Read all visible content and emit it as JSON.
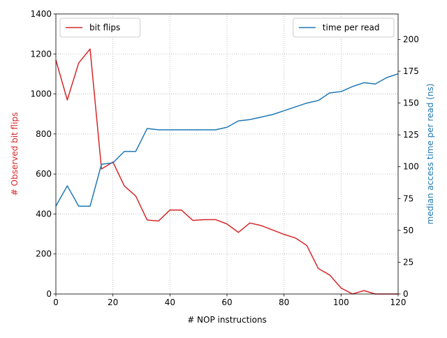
{
  "chart_data": {
    "type": "line",
    "xlabel": "# NOP instructions",
    "xlim": [
      0,
      120
    ],
    "x_ticks": [
      0,
      20,
      40,
      60,
      80,
      100,
      120
    ],
    "grid": true,
    "y_left": {
      "label": "# Observed bit flips",
      "color": "#d62728",
      "ylim": [
        0,
        1400
      ],
      "ticks": [
        0,
        200,
        400,
        600,
        800,
        1000,
        1200,
        1400
      ]
    },
    "y_right": {
      "label": "median access time per read (ns)",
      "color": "#1f77b4",
      "ylim": [
        0,
        220
      ],
      "ticks": [
        0,
        25,
        50,
        75,
        100,
        125,
        150,
        175,
        200
      ]
    },
    "series": [
      {
        "name": "bit flips",
        "axis": "left",
        "color": "#d62728",
        "legend_position": "upper-left",
        "x": [
          0,
          4,
          8,
          12,
          16,
          20,
          24,
          28,
          32,
          36,
          40,
          44,
          48,
          52,
          56,
          60,
          64,
          68,
          72,
          76,
          80,
          84,
          88,
          92,
          96,
          100,
          104,
          108,
          112,
          116,
          120
        ],
        "y": [
          1170,
          970,
          1155,
          1225,
          625,
          660,
          540,
          490,
          370,
          365,
          420,
          420,
          368,
          372,
          372,
          350,
          308,
          355,
          342,
          320,
          298,
          280,
          242,
          128,
          95,
          30,
          0,
          17,
          0,
          0,
          0
        ]
      },
      {
        "name": "time per read",
        "axis": "right",
        "color": "#1f77b4",
        "legend_position": "upper-right",
        "x": [
          0,
          4,
          8,
          12,
          16,
          20,
          24,
          28,
          32,
          36,
          40,
          44,
          48,
          52,
          56,
          60,
          64,
          68,
          72,
          76,
          80,
          84,
          88,
          92,
          96,
          100,
          104,
          108,
          112,
          116,
          120
        ],
        "y": [
          69,
          85,
          69,
          69,
          102,
          103,
          112,
          112,
          130,
          129,
          129,
          129,
          129,
          129,
          129,
          131,
          136,
          137,
          139,
          141,
          144,
          147,
          150,
          152,
          158,
          159,
          163,
          166,
          165,
          170,
          173
        ]
      }
    ]
  }
}
